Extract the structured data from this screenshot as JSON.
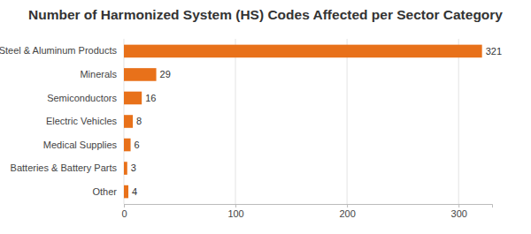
{
  "chart_data": {
    "type": "bar",
    "orientation": "horizontal",
    "title": "Number of Harmonized System (HS) Codes Affected per Sector Category",
    "categories": [
      "Steel & Aluminum Products",
      "Minerals",
      "Semiconductors",
      "Electric Vehicles",
      "Medical Supplies",
      "Batteries & Battery Parts",
      "Other"
    ],
    "values": [
      321,
      29,
      16,
      8,
      6,
      3,
      4
    ],
    "color": "#e8711a",
    "xlim": [
      0,
      330
    ],
    "xticks": [
      0,
      100,
      200,
      300
    ],
    "grid": true,
    "data_labels": true
  }
}
